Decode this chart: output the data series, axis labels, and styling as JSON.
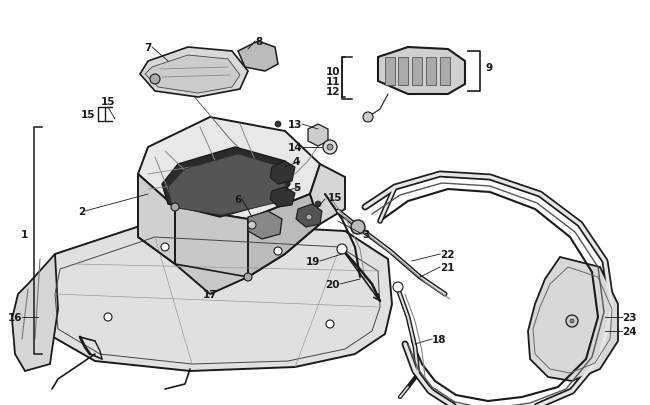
{
  "bg_color": "#ffffff",
  "lc": "#1a1a1a",
  "figsize": [
    6.5,
    4.06
  ],
  "dpi": 100,
  "fs": 7.0,
  "fs_bold": 7.5
}
